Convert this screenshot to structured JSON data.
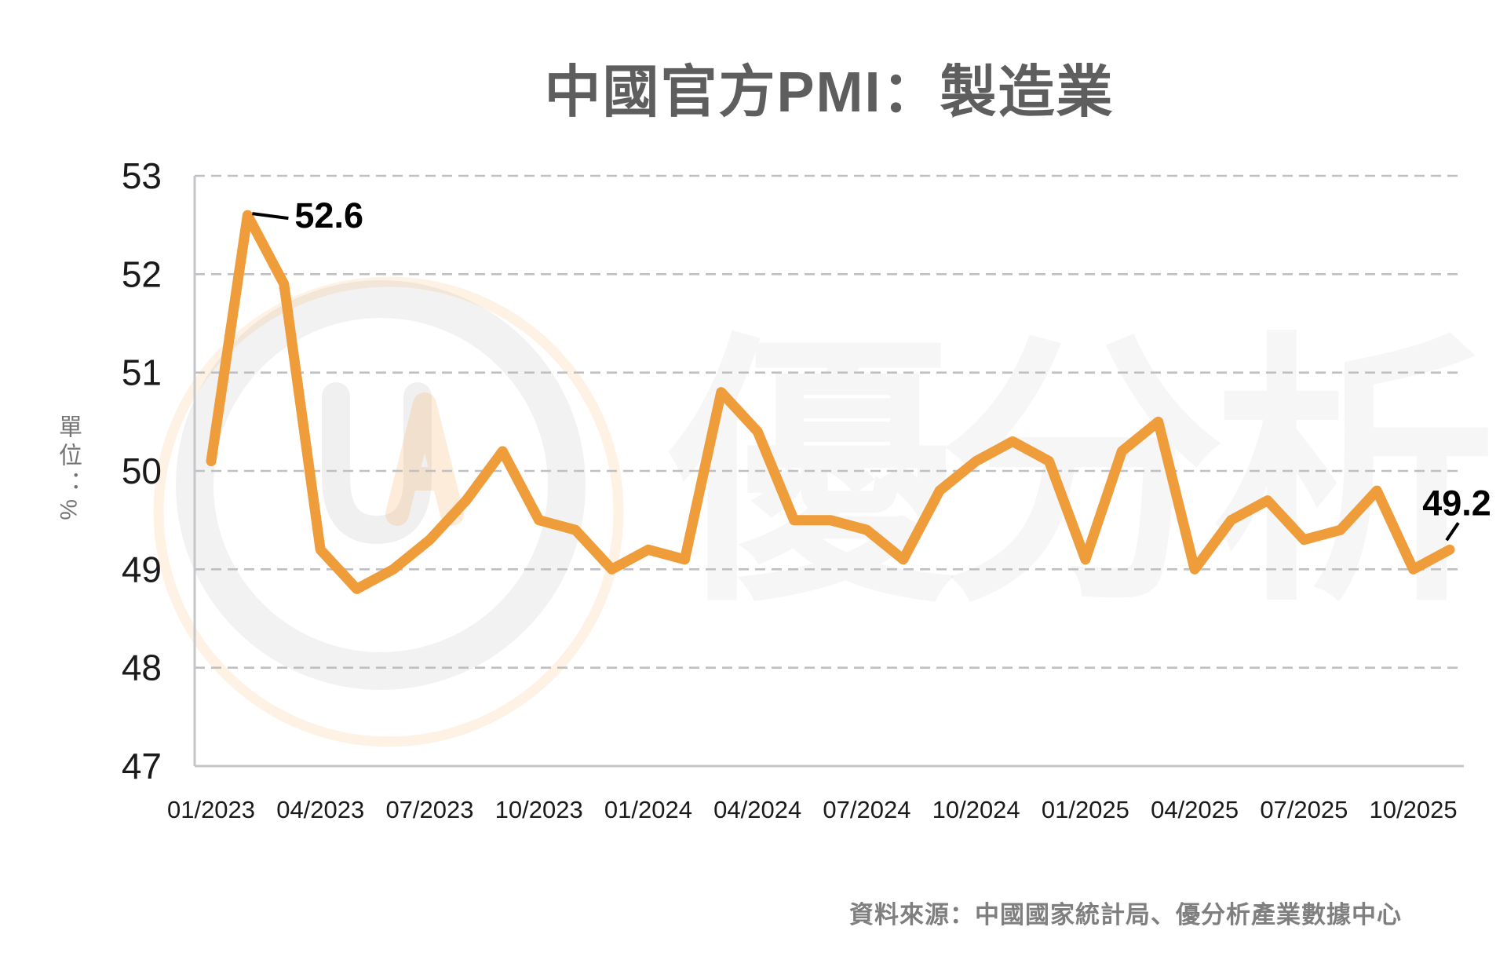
{
  "title": "中國官方PMI：製造業",
  "y_axis_unit": "單位：%",
  "source": "資料來源：中國國家統計局、優分析產業數據中心",
  "watermark": {
    "logo_letters": "UA",
    "text": "優分析"
  },
  "colors": {
    "line": "#EF9C3B",
    "title_text": "#5E5E5E",
    "tick_text": "#1A1A1A",
    "grid": "#BFBFC4",
    "axis": "#C6C6CA",
    "annotation_text": "#000000",
    "source_text": "#7F7F7F",
    "watermark_gray": "#8C8C8C",
    "watermark_orange": "#F0A040"
  },
  "annotations": [
    {
      "label": "52.6",
      "month": "02/2023",
      "placement": "right"
    },
    {
      "label": "49.2",
      "month": "11/2025",
      "placement": "above-right"
    }
  ],
  "chart_data": {
    "type": "line",
    "title": "中國官方PMI：製造業",
    "ylabel": "單位：%",
    "ylim": [
      47,
      53
    ],
    "y_ticks": [
      53,
      52,
      51,
      50,
      49,
      48,
      47
    ],
    "grid": "horizontal-dashed",
    "legend": "none",
    "x": [
      "01/2023",
      "02/2023",
      "03/2023",
      "04/2023",
      "05/2023",
      "06/2023",
      "07/2023",
      "08/2023",
      "09/2023",
      "10/2023",
      "11/2023",
      "12/2023",
      "01/2024",
      "02/2024",
      "03/2024",
      "04/2024",
      "05/2024",
      "06/2024",
      "07/2024",
      "08/2024",
      "09/2024",
      "10/2024",
      "11/2024",
      "12/2024",
      "01/2025",
      "02/2025",
      "03/2025",
      "04/2025",
      "05/2025",
      "06/2025",
      "07/2025",
      "08/2025",
      "09/2025",
      "10/2025",
      "11/2025"
    ],
    "values": [
      50.1,
      52.6,
      51.9,
      49.2,
      48.8,
      49.0,
      49.3,
      49.7,
      50.2,
      49.5,
      49.4,
      49.0,
      49.2,
      49.1,
      50.8,
      50.4,
      49.5,
      49.5,
      49.4,
      49.1,
      49.8,
      50.1,
      50.3,
      50.1,
      49.1,
      50.2,
      50.5,
      49.0,
      49.5,
      49.7,
      49.3,
      49.4,
      49.8,
      49.0,
      49.2
    ],
    "x_tick_labels": [
      "01/2023",
      "04/2023",
      "07/2023",
      "10/2023",
      "01/2024",
      "04/2024",
      "07/2024",
      "10/2024",
      "01/2025",
      "04/2025",
      "07/2025",
      "10/2025"
    ]
  }
}
